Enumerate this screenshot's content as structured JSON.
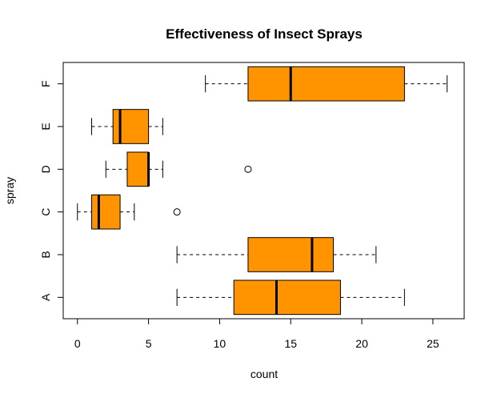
{
  "chart_data": {
    "type": "boxplot",
    "orientation": "horizontal",
    "title": "Effectiveness of Insect Sprays",
    "xlabel": "count",
    "ylabel": "spray",
    "xlim": [
      -1,
      27.2
    ],
    "xticks": [
      0,
      5,
      10,
      15,
      20,
      25
    ],
    "box_color": "#FF9400",
    "categories": [
      "A",
      "B",
      "C",
      "D",
      "E",
      "F"
    ],
    "boxes": [
      {
        "name": "A",
        "min": 7,
        "q1": 11,
        "median": 14,
        "q3": 18.5,
        "max": 23,
        "outliers": []
      },
      {
        "name": "B",
        "min": 7,
        "q1": 12,
        "median": 16.5,
        "q3": 18,
        "max": 21,
        "outliers": []
      },
      {
        "name": "C",
        "min": 0,
        "q1": 1,
        "median": 1.5,
        "q3": 3,
        "max": 4,
        "outliers": [
          7
        ]
      },
      {
        "name": "D",
        "min": 2,
        "q1": 3.5,
        "median": 5,
        "q3": 5,
        "max": 6,
        "outliers": [
          12
        ]
      },
      {
        "name": "E",
        "min": 1,
        "q1": 2.5,
        "median": 3,
        "q3": 5,
        "max": 6,
        "outliers": []
      },
      {
        "name": "F",
        "min": 9,
        "q1": 12,
        "median": 15,
        "q3": 23,
        "max": 26,
        "outliers": []
      }
    ]
  }
}
